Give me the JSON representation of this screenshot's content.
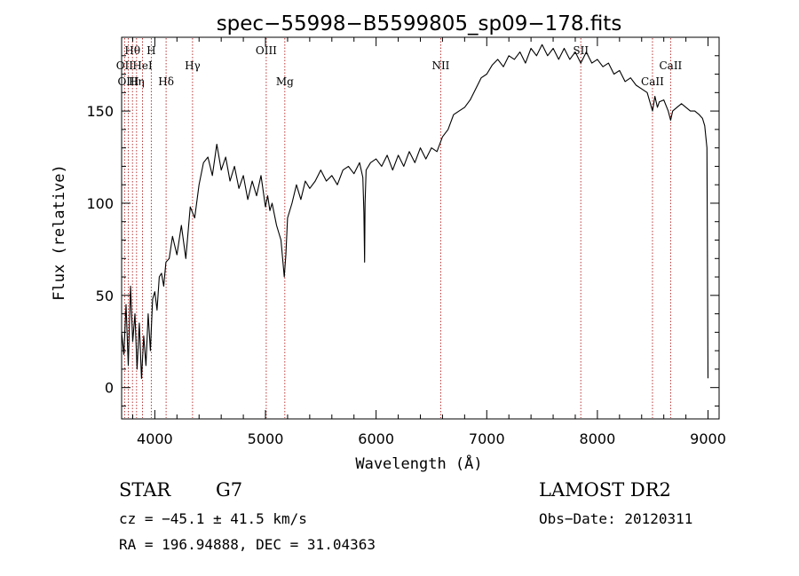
{
  "chart_data": {
    "type": "line",
    "title": "spec−55998−B5599805_sp09−178.fits",
    "xlabel": "Wavelength (Å)",
    "ylabel": "Flux (relative)",
    "xlim": [
      3700,
      9100
    ],
    "ylim": [
      -17,
      190
    ],
    "x_ticks": [
      4000,
      5000,
      6000,
      7000,
      8000,
      9000
    ],
    "y_ticks": [
      0,
      50,
      100,
      150
    ],
    "grid": false,
    "legend": "none",
    "colors": {
      "spectrum": "#000000",
      "line_markers": "#b22222"
    },
    "series": [
      {
        "x": [
          3700,
          3720,
          3740,
          3760,
          3780,
          3800,
          3820,
          3840,
          3860,
          3880,
          3900,
          3920,
          3940,
          3960,
          3980,
          4000,
          4020,
          4040,
          4060,
          4080,
          4100,
          4130,
          4160,
          4200,
          4240,
          4280,
          4320,
          4360,
          4400,
          4440,
          4480,
          4520,
          4560,
          4600,
          4640,
          4680,
          4720,
          4760,
          4800,
          4840,
          4880,
          4920,
          4960,
          5000,
          5020,
          5040,
          5060,
          5100,
          5140,
          5170,
          5184,
          5200,
          5240,
          5280,
          5320,
          5360,
          5400,
          5450,
          5500,
          5550,
          5600,
          5650,
          5700,
          5750,
          5800,
          5850,
          5880,
          5890,
          5896,
          5900,
          5910,
          5950,
          6000,
          6050,
          6100,
          6150,
          6200,
          6250,
          6300,
          6350,
          6400,
          6450,
          6500,
          6550,
          6600,
          6650,
          6700,
          6750,
          6800,
          6850,
          6900,
          6950,
          7000,
          7050,
          7100,
          7150,
          7200,
          7250,
          7300,
          7350,
          7400,
          7450,
          7500,
          7550,
          7600,
          7650,
          7700,
          7750,
          7800,
          7850,
          7900,
          7950,
          8000,
          8050,
          8100,
          8150,
          8200,
          8250,
          8300,
          8350,
          8400,
          8450,
          8498,
          8520,
          8542,
          8560,
          8600,
          8640,
          8662,
          8680,
          8720,
          8760,
          8800,
          8840,
          8880,
          8920,
          8950,
          8970,
          8990,
          9000
        ],
        "y": [
          30,
          18,
          45,
          12,
          55,
          25,
          40,
          10,
          35,
          5,
          28,
          12,
          40,
          20,
          48,
          52,
          42,
          60,
          62,
          55,
          68,
          70,
          82,
          72,
          88,
          70,
          98,
          92,
          110,
          122,
          125,
          115,
          132,
          118,
          125,
          112,
          120,
          108,
          115,
          102,
          112,
          104,
          115,
          98,
          104,
          96,
          100,
          88,
          80,
          60,
          72,
          92,
          100,
          110,
          102,
          112,
          108,
          112,
          118,
          112,
          115,
          110,
          118,
          120,
          116,
          122,
          114,
          95,
          68,
          100,
          118,
          122,
          124,
          120,
          126,
          118,
          126,
          120,
          128,
          122,
          130,
          124,
          130,
          128,
          136,
          140,
          148,
          150,
          152,
          156,
          162,
          168,
          170,
          175,
          178,
          174,
          180,
          178,
          182,
          176,
          184,
          180,
          186,
          180,
          184,
          178,
          184,
          178,
          182,
          176,
          182,
          176,
          178,
          174,
          176,
          170,
          172,
          166,
          168,
          164,
          162,
          160,
          150,
          158,
          152,
          155,
          156,
          150,
          145,
          150,
          152,
          154,
          152,
          150,
          150,
          148,
          146,
          142,
          130,
          5
        ]
      }
    ],
    "spectral_lines": [
      {
        "label": "Hθ",
        "wavelength": 3798,
        "row": 1
      },
      {
        "label": "H",
        "wavelength": 3968,
        "row": 1
      },
      {
        "label": "OII",
        "wavelength": 3727,
        "row": 2
      },
      {
        "label": "HeI",
        "wavelength": 3889,
        "row": 2
      },
      {
        "label": "OIII",
        "wavelength": 3760,
        "row": 3
      },
      {
        "label": "Hη",
        "wavelength": 3835,
        "row": 3
      },
      {
        "label": "Hδ",
        "wavelength": 4102,
        "row": 3
      },
      {
        "label": "Hγ",
        "wavelength": 4341,
        "row": 2
      },
      {
        "label": "OIII",
        "wavelength": 5007,
        "row": 1
      },
      {
        "label": "Mg",
        "wavelength": 5175,
        "row": 3
      },
      {
        "label": "NII",
        "wavelength": 6584,
        "row": 2
      },
      {
        "label": "SII",
        "wavelength": 7850,
        "row": 1
      },
      {
        "label": "CaII",
        "wavelength": 8498,
        "row": 3
      },
      {
        "label": "CaII",
        "wavelength": 8662,
        "row": 2
      }
    ]
  },
  "info": {
    "object_class": "STAR",
    "subclass": "G7",
    "survey": "LAMOST DR2",
    "redshift": "cz = −45.1 ± 41.5 km/s",
    "coordinates": "RA = 196.94888, DEC =  31.04363",
    "obs_date": "Obs−Date: 20120311"
  }
}
